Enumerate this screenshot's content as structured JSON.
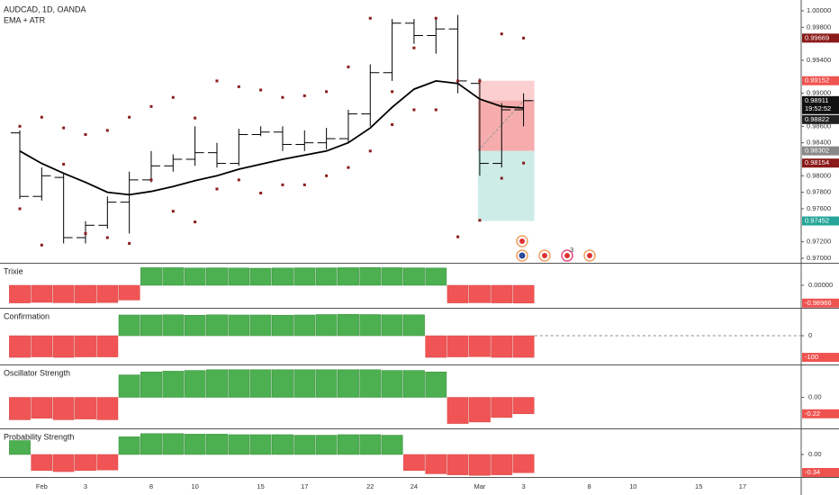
{
  "chart_data": [
    {
      "type": "ohlc",
      "title": "AUDCAD, 1D, OANDA",
      "subtitle": "EMA + ATR",
      "categories": [
        null,
        "Feb",
        null,
        "3",
        null,
        null,
        "8",
        null,
        "10",
        null,
        null,
        "15",
        null,
        "17",
        null,
        null,
        "22",
        null,
        "24",
        null,
        null,
        "Mar",
        null,
        "3",
        null,
        null,
        "8",
        null,
        "10",
        null,
        null,
        "15",
        null,
        "17",
        null,
        null
      ],
      "open": [
        0.9852,
        0.9775,
        0.9798,
        0.9725,
        0.974,
        0.9768,
        0.9795,
        0.9812,
        0.982,
        0.9828,
        0.9815,
        0.985,
        0.9853,
        0.9838,
        0.984,
        0.9845,
        0.9875,
        0.9925,
        0.9985,
        0.997,
        0.9978,
        0.9912,
        0.9815,
        0.988,
        null,
        null,
        null,
        null,
        null,
        null,
        null,
        null,
        null,
        null,
        null,
        null
      ],
      "high": [
        0.9855,
        0.981,
        0.9802,
        0.9745,
        0.9775,
        0.9805,
        0.983,
        0.9826,
        0.986,
        0.984,
        0.9857,
        0.986,
        0.986,
        0.9855,
        0.9858,
        0.988,
        0.9935,
        0.999,
        0.999,
        0.999,
        0.9995,
        0.9918,
        0.9888,
        0.99,
        null,
        null,
        null,
        null,
        null,
        null,
        null,
        null,
        null,
        null,
        null,
        null
      ],
      "low": [
        0.9772,
        0.977,
        0.9718,
        0.9718,
        0.9736,
        0.973,
        0.9792,
        0.9805,
        0.9812,
        0.981,
        0.9812,
        0.9848,
        0.983,
        0.983,
        0.9832,
        0.984,
        0.986,
        0.9915,
        0.996,
        0.9948,
        0.99,
        0.98,
        0.981,
        0.986,
        null,
        null,
        null,
        null,
        null,
        null,
        null,
        null,
        null,
        null,
        null,
        null
      ],
      "close": [
        0.9775,
        0.98,
        0.9725,
        0.974,
        0.9768,
        0.9795,
        0.9812,
        0.982,
        0.9828,
        0.9815,
        0.985,
        0.9853,
        0.9838,
        0.984,
        0.9845,
        0.9875,
        0.9925,
        0.9985,
        0.997,
        0.9978,
        0.9915,
        0.9815,
        0.988,
        0.98911,
        null,
        null,
        null,
        null,
        null,
        null,
        null,
        null,
        null,
        null,
        null,
        null
      ],
      "ema": [
        0.983,
        0.9815,
        0.9803,
        0.9792,
        0.978,
        0.9777,
        0.9781,
        0.9787,
        0.9794,
        0.98,
        0.9808,
        0.9814,
        0.982,
        0.9825,
        0.983,
        0.984,
        0.9858,
        0.9883,
        0.9905,
        0.9915,
        0.9912,
        0.9893,
        0.9884,
        0.98822,
        null,
        null,
        null,
        null,
        null,
        null,
        null,
        null,
        null,
        null,
        null,
        null
      ],
      "atr_upper": [
        0.986,
        0.9871,
        0.9858,
        0.985,
        0.9855,
        0.9871,
        0.9884,
        0.9895,
        0.987,
        0.9915,
        0.9908,
        0.9904,
        0.9895,
        0.9897,
        0.9902,
        0.9932,
        0.9991,
        0.9902,
        0.9955,
        0.9991,
        0.9915,
        0.9915,
        0.9972,
        0.99669,
        null,
        null,
        null,
        null,
        null,
        null,
        null,
        null,
        null,
        null,
        null,
        null
      ],
      "atr_lower": [
        0.976,
        0.9716,
        0.9814,
        0.973,
        0.9725,
        0.9718,
        0.9795,
        0.9757,
        0.9744,
        0.9784,
        0.9795,
        0.9779,
        0.9789,
        0.9789,
        0.98,
        0.981,
        0.983,
        0.9862,
        0.988,
        0.988,
        0.9726,
        0.9746,
        0.9797,
        0.98154,
        null,
        null,
        null,
        null,
        null,
        null,
        null,
        null,
        null,
        null,
        null,
        null
      ],
      "position": {
        "stop": 0.99152,
        "entry": 0.98302,
        "target": 0.97452
      },
      "countdown": "19:52:52",
      "event_badge": 3,
      "ylim": [
        0.96945,
        1.00131
      ],
      "yticks": [
        {
          "value": 1.0,
          "label": "1.00000"
        },
        {
          "value": 0.998,
          "label": "0.99800"
        },
        {
          "value": 0.994,
          "label": "0.99400"
        },
        {
          "value": 0.99,
          "label": "0.99000"
        },
        {
          "value": 0.986,
          "label": "0.98600"
        },
        {
          "value": 0.984,
          "label": "0.98400"
        },
        {
          "value": 0.98,
          "label": "0.98000"
        },
        {
          "value": 0.978,
          "label": "0.97800"
        },
        {
          "value": 0.976,
          "label": "0.97600"
        },
        {
          "value": 0.972,
          "label": "0.97200"
        },
        {
          "value": 0.97,
          "label": "0.97000"
        }
      ],
      "color": "#000000",
      "atr_color": "#8b1a1a"
    },
    {
      "type": "bar",
      "title": "Trixie",
      "ylim": [
        -1.25,
        1.2
      ],
      "yticks": [
        {
          "value": 0,
          "label": "0.00000"
        }
      ],
      "values": [
        -0.98,
        -0.95,
        -0.97,
        -0.98,
        -0.96,
        -0.82,
        0.98,
        0.98,
        0.96,
        0.97,
        0.96,
        0.95,
        0.96,
        0.97,
        0.97,
        0.98,
        0.99,
        0.98,
        0.97,
        0.96,
        -0.98,
        -0.97,
        -0.98,
        -0.98966,
        null,
        null,
        null,
        null,
        null,
        null,
        null,
        null,
        null,
        null,
        null,
        null
      ],
      "colors": {
        "up": "#4caf50",
        "down": "#f05454"
      }
    },
    {
      "type": "bar",
      "title": "Confirmation",
      "ylim": [
        -133,
        125
      ],
      "yticks": [
        0
      ],
      "zero_line": true,
      "values": [
        -100,
        -98,
        -100,
        -98,
        -98,
        96,
        96,
        97,
        95,
        97,
        96,
        96,
        95,
        96,
        98,
        99,
        98,
        97,
        97,
        -100,
        -98,
        -97,
        -100,
        -100,
        null,
        null,
        null,
        null,
        null,
        null,
        null,
        null,
        null,
        null,
        null,
        null
      ],
      "colors": {
        "up": "#4caf50",
        "down": "#f05454"
      }
    },
    {
      "type": "bar",
      "title": "Oscillator Strength",
      "ylim": [
        -0.415,
        0.427
      ],
      "yticks": [
        {
          "value": 0,
          "label": "0.00"
        }
      ],
      "values": [
        -0.3,
        -0.28,
        -0.3,
        -0.29,
        -0.3,
        0.3,
        0.34,
        0.35,
        0.36,
        0.37,
        0.37,
        0.37,
        0.37,
        0.37,
        0.37,
        0.37,
        0.37,
        0.36,
        0.36,
        0.34,
        -0.35,
        -0.33,
        -0.27,
        -0.22,
        null,
        null,
        null,
        null,
        null,
        null,
        null,
        null,
        null,
        null,
        null,
        null
      ],
      "colors": {
        "up": "#4caf50",
        "down": "#f05454"
      }
    },
    {
      "type": "bar",
      "title": "Probability Strength",
      "ylim": [
        -0.42,
        0.47
      ],
      "yticks": [
        {
          "value": 0,
          "label": "0.00"
        }
      ],
      "values": [
        0.26,
        -0.3,
        -0.32,
        -0.3,
        -0.29,
        0.33,
        0.39,
        0.39,
        0.38,
        0.38,
        0.37,
        0.37,
        0.37,
        0.36,
        0.36,
        0.37,
        0.37,
        0.36,
        -0.3,
        -0.36,
        -0.38,
        -0.39,
        -0.38,
        -0.34,
        null,
        null,
        null,
        null,
        null,
        null,
        null,
        null,
        null,
        null,
        null,
        null
      ],
      "colors": {
        "up": "#4caf50",
        "down": "#f05454"
      }
    }
  ]
}
